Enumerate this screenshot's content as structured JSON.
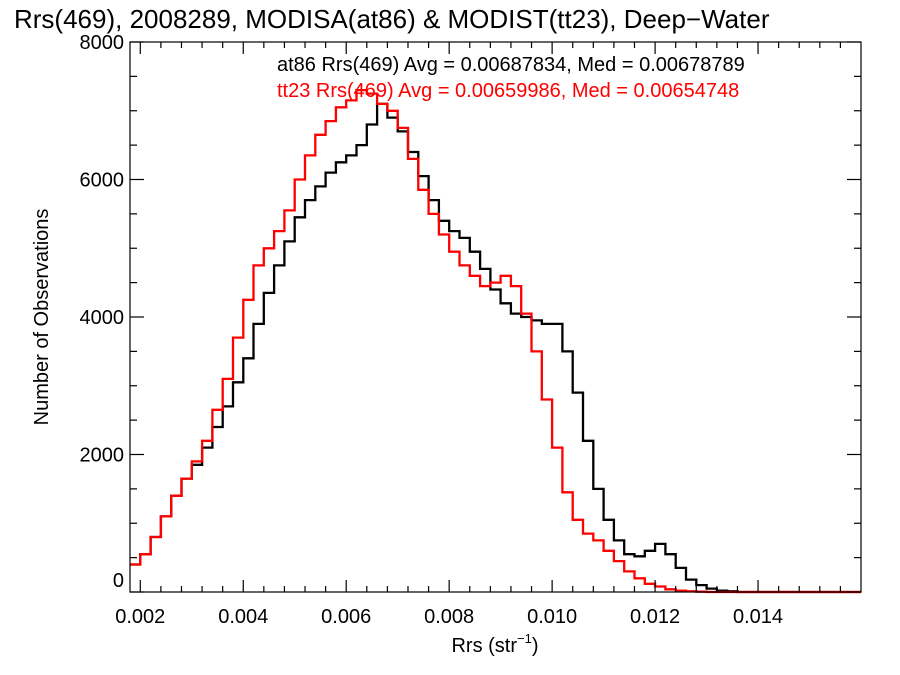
{
  "chart_data": {
    "type": "line",
    "title": "Rrs(469), 2008289, MODISA(at86) & MODIST(tt23), Deep−Water",
    "xlabel_main": "Rrs (str",
    "xlabel_sup": "−1",
    "xlabel_end": ")",
    "ylabel": "Number of Observations",
    "xlim": [
      0.0018,
      0.016
    ],
    "ylim": [
      0,
      8000
    ],
    "x_ticks": [
      0.002,
      0.004,
      0.006,
      0.008,
      0.01,
      0.012,
      0.014
    ],
    "x_tick_labels": [
      "0.002",
      "0.004",
      "0.006",
      "0.008",
      "0.010",
      "0.012",
      "0.014"
    ],
    "y_ticks": [
      0,
      2000,
      4000,
      6000,
      8000
    ],
    "y_tick_labels": [
      "0",
      "2000",
      "4000",
      "6000",
      "8000"
    ],
    "annotations": [
      {
        "text": "at86 Rrs(469) Avg = 0.00687834, Med = 0.00678789",
        "color": "#000000"
      },
      {
        "text": "tt23 Rrs(469) Avg = 0.00659986, Med = 0.00654748",
        "color": "#ff0000"
      }
    ],
    "series": [
      {
        "color": "#000000",
        "x": [
          0.0018,
          0.002,
          0.0022,
          0.0024,
          0.0026,
          0.0028,
          0.003,
          0.0032,
          0.0034,
          0.0036,
          0.0038,
          0.004,
          0.0042,
          0.0044,
          0.0046,
          0.0048,
          0.005,
          0.0052,
          0.0054,
          0.0056,
          0.0058,
          0.006,
          0.0062,
          0.0064,
          0.0066,
          0.0068,
          0.007,
          0.0072,
          0.0074,
          0.0076,
          0.0078,
          0.008,
          0.0082,
          0.0084,
          0.0086,
          0.0088,
          0.009,
          0.0092,
          0.0094,
          0.0096,
          0.0098,
          0.01,
          0.0102,
          0.0104,
          0.0106,
          0.0108,
          0.011,
          0.0112,
          0.0114,
          0.0116,
          0.0118,
          0.012,
          0.0122,
          0.0124,
          0.0126,
          0.0128,
          0.013,
          0.0132,
          0.0134,
          0.0136,
          0.014,
          0.015,
          0.016
        ],
        "y": [
          400,
          550,
          800,
          1100,
          1400,
          1650,
          1850,
          2100,
          2400,
          2700,
          3050,
          3400,
          3900,
          4350,
          4750,
          5100,
          5450,
          5700,
          5900,
          6100,
          6250,
          6350,
          6500,
          6800,
          7100,
          6900,
          6700,
          6400,
          6050,
          5700,
          5400,
          5250,
          5150,
          4950,
          4700,
          4400,
          4200,
          4050,
          4000,
          3950,
          3900,
          3900,
          3500,
          2900,
          2200,
          1500,
          1050,
          750,
          550,
          520,
          600,
          700,
          550,
          350,
          180,
          100,
          50,
          20,
          10,
          0,
          0,
          0,
          0
        ]
      },
      {
        "color": "#ff0000",
        "x": [
          0.0018,
          0.002,
          0.0022,
          0.0024,
          0.0026,
          0.0028,
          0.003,
          0.0032,
          0.0034,
          0.0036,
          0.0038,
          0.004,
          0.0042,
          0.0044,
          0.0046,
          0.0048,
          0.005,
          0.0052,
          0.0054,
          0.0056,
          0.0058,
          0.006,
          0.0062,
          0.0064,
          0.0066,
          0.0068,
          0.007,
          0.0072,
          0.0074,
          0.0076,
          0.0078,
          0.008,
          0.0082,
          0.0084,
          0.0086,
          0.0088,
          0.009,
          0.0092,
          0.0094,
          0.0096,
          0.0098,
          0.01,
          0.0102,
          0.0104,
          0.0106,
          0.0108,
          0.011,
          0.0112,
          0.0114,
          0.0116,
          0.0118,
          0.012,
          0.0122,
          0.0124,
          0.0126,
          0.0128,
          0.013,
          0.0132,
          0.014,
          0.015,
          0.016
        ],
        "y": [
          400,
          550,
          800,
          1100,
          1400,
          1650,
          1900,
          2200,
          2650,
          3100,
          3700,
          4250,
          4750,
          5000,
          5250,
          5550,
          6000,
          6350,
          6650,
          6850,
          7050,
          7150,
          7300,
          7250,
          7100,
          7000,
          6750,
          6300,
          5850,
          5500,
          5200,
          4950,
          4750,
          4600,
          4450,
          4500,
          4600,
          4450,
          4050,
          3500,
          2800,
          2100,
          1450,
          1050,
          850,
          750,
          600,
          450,
          300,
          200,
          120,
          80,
          40,
          20,
          10,
          5,
          0,
          0,
          0,
          0,
          0
        ]
      }
    ]
  }
}
